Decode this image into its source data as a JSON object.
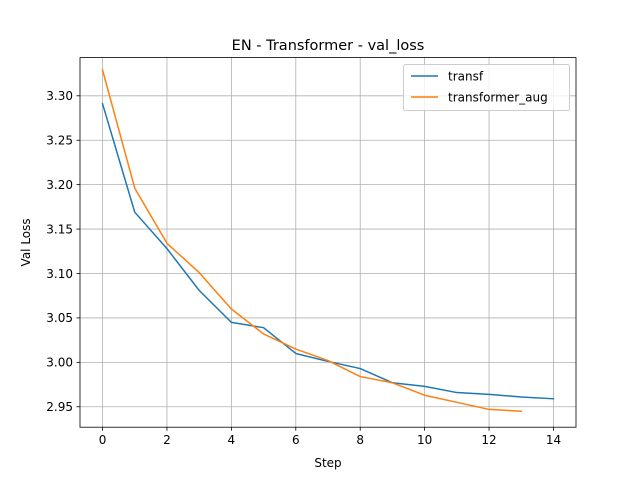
{
  "chart_data": {
    "type": "line",
    "title": "EN - Transformer - val_loss",
    "xlabel": "Step",
    "ylabel": "Val Loss",
    "xlim": [
      -0.7,
      14.7
    ],
    "ylim": [
      2.927,
      3.343
    ],
    "xticks": [
      0,
      2,
      4,
      6,
      8,
      10,
      12,
      14
    ],
    "xtick_labels": [
      "0",
      "2",
      "4",
      "6",
      "8",
      "10",
      "12",
      "14"
    ],
    "yticks": [
      2.95,
      3.0,
      3.05,
      3.1,
      3.15,
      3.2,
      3.25,
      3.3
    ],
    "ytick_labels": [
      "2.95",
      "3.00",
      "3.05",
      "3.10",
      "3.15",
      "3.20",
      "3.25",
      "3.30"
    ],
    "grid": true,
    "legend_position": "top-right",
    "series": [
      {
        "name": "transf",
        "color": "#1f77b4",
        "x": [
          0,
          1,
          2,
          3,
          4,
          5,
          6,
          7,
          8,
          9,
          10,
          11,
          12,
          13,
          14
        ],
        "y": [
          3.291,
          3.169,
          3.128,
          3.081,
          3.045,
          3.039,
          3.01,
          3.001,
          2.993,
          2.977,
          2.973,
          2.966,
          2.964,
          2.961,
          2.959
        ]
      },
      {
        "name": "transformer_aug",
        "color": "#ff7f0e",
        "x": [
          0,
          1,
          2,
          3,
          4,
          5,
          6,
          7,
          8,
          9,
          10,
          11,
          12,
          13
        ],
        "y": [
          3.329,
          3.196,
          3.134,
          3.101,
          3.06,
          3.032,
          3.015,
          3.002,
          2.984,
          2.977,
          2.963,
          2.955,
          2.947,
          2.945
        ]
      }
    ]
  }
}
